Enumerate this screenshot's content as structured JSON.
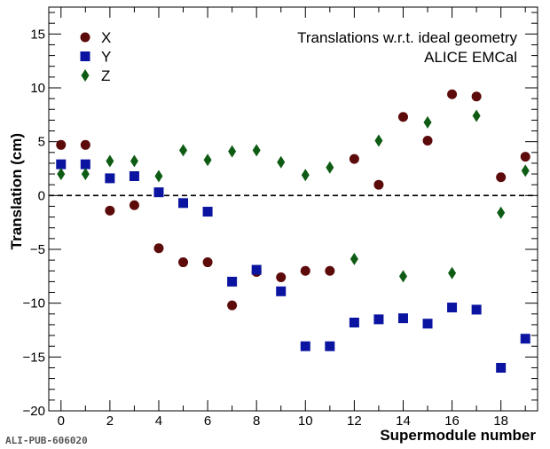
{
  "chart_data": {
    "type": "scatter",
    "xlabel": "Supermodule number",
    "ylabel": "Translation (cm)",
    "xlim": [
      -0.5,
      19.5
    ],
    "ylim": [
      -20,
      17.5
    ],
    "xticks": [
      0,
      2,
      4,
      6,
      8,
      10,
      12,
      14,
      16,
      18
    ],
    "yticks": [
      -20,
      -15,
      -10,
      -5,
      0,
      5,
      10,
      15
    ],
    "grid": false,
    "legend_position": "top-left",
    "reference_line": {
      "y": 0,
      "style": "dashed"
    },
    "annotations": [
      "Translations w.r.t. ideal geometry",
      "ALICE EMCal"
    ],
    "series": [
      {
        "name": "X",
        "marker": "circle",
        "color": "#5c0a0a",
        "x": [
          0,
          1,
          2,
          3,
          4,
          5,
          6,
          7,
          8,
          9,
          10,
          11,
          12,
          13,
          14,
          15,
          16,
          17,
          18,
          19
        ],
        "values": [
          4.7,
          4.7,
          -1.4,
          -0.9,
          -4.9,
          -6.2,
          -6.2,
          -10.2,
          -7.1,
          -7.6,
          -7.0,
          -7.0,
          3.4,
          1.0,
          7.3,
          5.1,
          9.4,
          9.2,
          1.7,
          3.6
        ]
      },
      {
        "name": "Y",
        "marker": "square",
        "color": "#0a14a0",
        "x": [
          0,
          1,
          2,
          3,
          4,
          5,
          6,
          7,
          8,
          9,
          10,
          11,
          12,
          13,
          14,
          15,
          16,
          17,
          18,
          19
        ],
        "values": [
          2.9,
          2.9,
          1.6,
          1.8,
          0.3,
          -0.7,
          -1.5,
          -8.0,
          -6.9,
          -8.9,
          -14.0,
          -14.0,
          -11.8,
          -11.5,
          -11.4,
          -11.9,
          -10.4,
          -10.6,
          -16.0,
          -13.3
        ]
      },
      {
        "name": "Z",
        "marker": "diamond",
        "color": "#0e5c14",
        "x": [
          0,
          1,
          2,
          3,
          4,
          5,
          6,
          7,
          8,
          9,
          10,
          11,
          12,
          13,
          14,
          15,
          16,
          17,
          18,
          19
        ],
        "values": [
          2.0,
          2.0,
          3.2,
          3.2,
          1.8,
          4.2,
          3.3,
          4.1,
          4.2,
          3.1,
          1.9,
          2.6,
          -5.9,
          5.1,
          -7.5,
          6.8,
          -7.2,
          7.4,
          -1.6,
          2.3
        ]
      }
    ]
  },
  "footer": {
    "pub_id": "ALI-PUB-606020"
  }
}
